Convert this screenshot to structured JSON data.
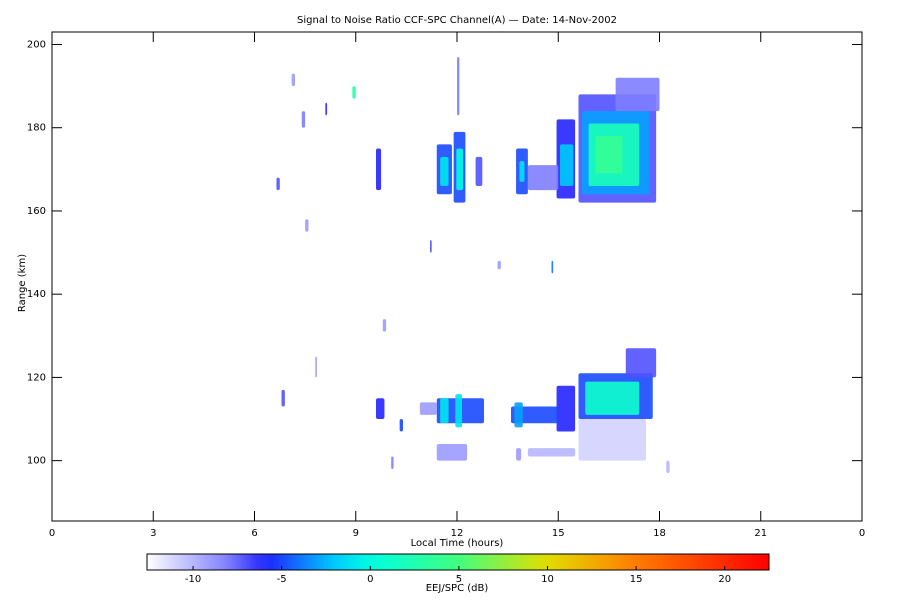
{
  "chart_data": {
    "type": "heatmap",
    "title": "Signal to Noise Ratio CCF-SPC Channel(A) — Date: 14-Nov-2002",
    "x_label": "Local Time (hours)",
    "y_label": "Range (km)",
    "xlim": [
      0,
      24
    ],
    "ylim": [
      85.5,
      203
    ],
    "xticks": [
      0,
      3,
      6,
      9,
      12,
      15,
      18,
      21,
      {
        "value": 24,
        "label": "0"
      }
    ],
    "yticks": [
      100,
      120,
      140,
      160,
      180,
      200
    ],
    "colorbar_label": "EEJ/SPC (dB)",
    "clim": [
      -12.6,
      22.5
    ],
    "colorbar_ticks": [
      -10,
      -5,
      0,
      5,
      10,
      15,
      20
    ],
    "cells": [
      {
        "x": [
          15.6,
          17.9
        ],
        "y": [
          162,
          188
        ],
        "value": -7
      },
      {
        "x": [
          15.7,
          17.7
        ],
        "y": [
          164,
          184
        ],
        "value": -3
      },
      {
        "x": [
          15.9,
          17.4
        ],
        "y": [
          166,
          181
        ],
        "value": 2
      },
      {
        "x": [
          16.1,
          16.9
        ],
        "y": [
          169,
          178
        ],
        "value": 4
      },
      {
        "x": [
          16.7,
          18.0
        ],
        "y": [
          184,
          192
        ],
        "value": -8
      },
      {
        "x": [
          14.95,
          15.5
        ],
        "y": [
          163,
          182
        ],
        "value": -6
      },
      {
        "x": [
          15.05,
          15.45
        ],
        "y": [
          166,
          176
        ],
        "value": -2
      },
      {
        "x": [
          14.1,
          15.0
        ],
        "y": [
          165,
          171
        ],
        "value": -8
      },
      {
        "x": [
          13.75,
          14.1
        ],
        "y": [
          164,
          175
        ],
        "value": -5
      },
      {
        "x": [
          13.85,
          14.0
        ],
        "y": [
          167,
          172
        ],
        "value": -1
      },
      {
        "x": [
          12.55,
          12.75
        ],
        "y": [
          166,
          173
        ],
        "value": -7
      },
      {
        "x": [
          11.9,
          12.25
        ],
        "y": [
          162,
          179
        ],
        "value": -5
      },
      {
        "x": [
          11.98,
          12.18
        ],
        "y": [
          165,
          175
        ],
        "value": 0
      },
      {
        "x": [
          11.4,
          11.85
        ],
        "y": [
          164,
          176
        ],
        "value": -5
      },
      {
        "x": [
          11.5,
          11.75
        ],
        "y": [
          166,
          173
        ],
        "value": -1
      },
      {
        "x": [
          9.6,
          9.75
        ],
        "y": [
          165,
          175
        ],
        "value": -6
      },
      {
        "x": [
          15.6,
          17.8
        ],
        "y": [
          110,
          121
        ],
        "value": -5
      },
      {
        "x": [
          15.8,
          17.4
        ],
        "y": [
          111,
          119
        ],
        "value": 1
      },
      {
        "x": [
          17.0,
          17.9
        ],
        "y": [
          120,
          127
        ],
        "value": -7
      },
      {
        "x": [
          15.6,
          17.6
        ],
        "y": [
          100,
          110
        ],
        "value": -11
      },
      {
        "x": [
          14.95,
          15.5
        ],
        "y": [
          107,
          118
        ],
        "value": -6
      },
      {
        "x": [
          13.6,
          15.0
        ],
        "y": [
          109,
          113
        ],
        "value": -5
      },
      {
        "x": [
          13.7,
          13.95
        ],
        "y": [
          108,
          114
        ],
        "value": -3
      },
      {
        "x": [
          11.4,
          12.8
        ],
        "y": [
          109,
          115
        ],
        "value": -5
      },
      {
        "x": [
          11.5,
          11.75
        ],
        "y": [
          109,
          115
        ],
        "value": -1
      },
      {
        "x": [
          11.95,
          12.15
        ],
        "y": [
          108,
          116
        ],
        "value": -1
      },
      {
        "x": [
          10.9,
          11.4
        ],
        "y": [
          111,
          114
        ],
        "value": -9
      },
      {
        "x": [
          9.6,
          9.85
        ],
        "y": [
          110,
          115
        ],
        "value": -6
      },
      {
        "x": [
          11.4,
          12.3
        ],
        "y": [
          100,
          104
        ],
        "value": -9
      },
      {
        "x": [
          13.75,
          13.9
        ],
        "y": [
          100,
          103
        ],
        "value": -9
      },
      {
        "x": [
          14.1,
          15.5
        ],
        "y": [
          101,
          103
        ],
        "value": -10
      },
      {
        "x": [
          6.8,
          6.9
        ],
        "y": [
          113,
          117
        ],
        "value": -7
      },
      {
        "x": [
          12.0,
          12.07
        ],
        "y": [
          183,
          197
        ],
        "value": -8
      },
      {
        "x": [
          7.8,
          7.85
        ],
        "y": [
          120,
          125
        ],
        "value": -9
      },
      {
        "x": [
          8.1,
          8.15
        ],
        "y": [
          183,
          186
        ],
        "value": -6
      },
      {
        "x": [
          7.4,
          7.5
        ],
        "y": [
          180,
          184
        ],
        "value": -8
      },
      {
        "x": [
          10.3,
          10.4
        ],
        "y": [
          107,
          110
        ],
        "value": -5
      },
      {
        "x": [
          14.8,
          14.85
        ],
        "y": [
          145,
          148
        ],
        "value": -4
      },
      {
        "x": [
          8.9,
          9.0
        ],
        "y": [
          187,
          190
        ],
        "value": 3
      },
      {
        "x": [
          11.2,
          11.25
        ],
        "y": [
          150,
          153
        ],
        "value": -7
      },
      {
        "x": [
          6.65,
          6.75
        ],
        "y": [
          165,
          168
        ],
        "value": -7
      },
      {
        "x": [
          7.5,
          7.6
        ],
        "y": [
          155,
          158
        ],
        "value": -9
      },
      {
        "x": [
          13.2,
          13.3
        ],
        "y": [
          146,
          148
        ],
        "value": -9
      },
      {
        "x": [
          9.8,
          9.9
        ],
        "y": [
          131,
          134
        ],
        "value": -9
      },
      {
        "x": [
          10.05,
          10.12
        ],
        "y": [
          98,
          101
        ],
        "value": -8
      },
      {
        "x": [
          7.1,
          7.2
        ],
        "y": [
          190,
          193
        ],
        "value": -9
      },
      {
        "x": [
          18.2,
          18.3
        ],
        "y": [
          97,
          100
        ],
        "value": -10
      }
    ]
  }
}
